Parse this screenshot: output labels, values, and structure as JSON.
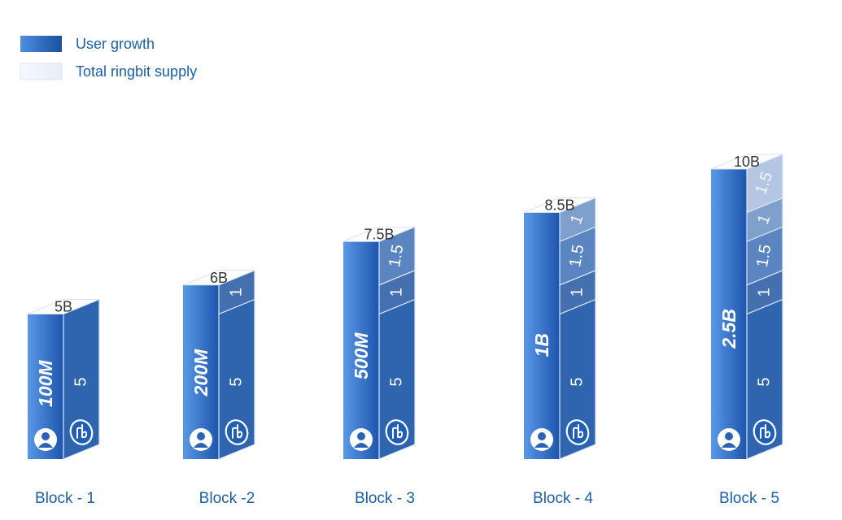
{
  "chart_data": {
    "type": "bar",
    "categories": [
      "Block - 1",
      "Block -2",
      "Block - 3",
      "Block - 4",
      "Block - 5"
    ],
    "legend": [
      {
        "label": "User growth",
        "color": "#2f6ec4"
      },
      {
        "label": "Total ringbit supply",
        "color": "#eef4fb"
      }
    ],
    "legend_placement": "top-left",
    "totals": [
      "5B",
      "6B",
      "7.5B",
      "8.5B",
      "10B"
    ],
    "user_growth": [
      "100M",
      "200M",
      "500M",
      "1B",
      "2.5B"
    ],
    "supply_segments": [
      [
        5
      ],
      [
        5,
        1
      ],
      [
        5,
        1,
        1.5
      ],
      [
        5,
        1,
        1.5,
        1
      ],
      [
        5,
        1,
        1.5,
        1,
        1.5
      ]
    ],
    "supply_segment_labels": [
      [
        "5"
      ],
      [
        "5",
        "1"
      ],
      [
        "5",
        "1",
        "1.5"
      ],
      [
        "5",
        "1",
        "1.5",
        "1"
      ],
      [
        "5",
        "1",
        "1.5",
        "1",
        "1.5"
      ]
    ],
    "ylim": [
      0,
      10
    ],
    "grid": false,
    "icons": [
      "user-icon",
      "ringbit-logo-icon"
    ],
    "colors": {
      "front_light": "#4f8fe0",
      "front_dark": "#1e56ad",
      "side_base": "#2e63ad",
      "cap": "#ffffff",
      "label_blue": "#1a5fa8"
    }
  }
}
